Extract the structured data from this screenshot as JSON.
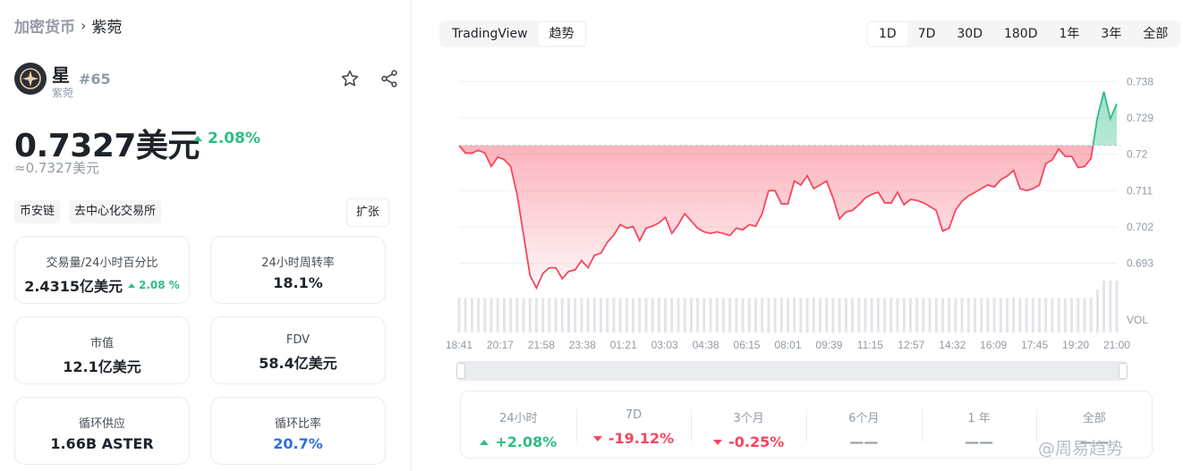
{
  "breadcrumb": {
    "parent": "加密货币",
    "separator": "›",
    "current": "紫菀"
  },
  "coin": {
    "name": "星",
    "subname": "紫菀",
    "rank": "#65"
  },
  "price": {
    "value": "0.7327美元",
    "change": "2.08%",
    "approx": "≈0.7327美元"
  },
  "tags": [
    "币安链",
    "去中心化交易所"
  ],
  "expand_label": "扩张",
  "stats": [
    {
      "label": "交易量/24小时百分比",
      "value": "2.4315亿美元",
      "sub": "2.08 %"
    },
    {
      "label": "24小时周转率",
      "value": "18.1%"
    },
    {
      "label": "市值",
      "value": "12.1亿美元"
    },
    {
      "label": "FDV",
      "value": "58.4亿美元"
    },
    {
      "label": "循环供应",
      "value": "1.66B ASTER"
    },
    {
      "label": "循环比率",
      "value": "20.7%"
    }
  ],
  "chart_type_tabs": [
    {
      "label": "TradingView",
      "active": false
    },
    {
      "label": "趋势",
      "active": true
    }
  ],
  "range_tabs": [
    {
      "label": "1D",
      "active": true
    },
    {
      "label": "7D",
      "active": false
    },
    {
      "label": "30D",
      "active": false
    },
    {
      "label": "180D",
      "active": false
    },
    {
      "label": "1年",
      "active": false
    },
    {
      "label": "3年",
      "active": false
    },
    {
      "label": "全部",
      "active": false
    }
  ],
  "chart_data": {
    "type": "area",
    "title": "",
    "xlabel": "",
    "ylabel": "",
    "volume_label": "VOL",
    "x_ticks": [
      "18:41",
      "20:17",
      "21:58",
      "23:38",
      "01:21",
      "03:03",
      "04:38",
      "06:15",
      "08:01",
      "09:39",
      "11:15",
      "12:57",
      "14:32",
      "16:09",
      "17:45",
      "19:20",
      "21:00"
    ],
    "y_ticks": [
      0.738,
      0.729,
      0.72,
      0.711,
      0.702,
      0.693
    ],
    "ylim": [
      0.6896,
      0.7405
    ],
    "reference_price": 0.7222,
    "series": [
      {
        "values": [
          0.7222,
          0.7203,
          0.7203,
          0.721,
          0.7203,
          0.717,
          0.7193,
          0.7187,
          0.717,
          0.71,
          0.7,
          0.69,
          0.6869,
          0.6905,
          0.6919,
          0.6919,
          0.6892,
          0.691,
          0.6914,
          0.6937,
          0.6919,
          0.695,
          0.6955,
          0.6982,
          0.7,
          0.7026,
          0.7017,
          0.7021,
          0.6986,
          0.7017,
          0.7022,
          0.703,
          0.7044,
          0.7004,
          0.7026,
          0.7053,
          0.7035,
          0.7017,
          0.7008,
          0.7004,
          0.7008,
          0.7004,
          0.6999,
          0.7017,
          0.7013,
          0.7026,
          0.7022,
          0.7053,
          0.711,
          0.711,
          0.7077,
          0.7077,
          0.7134,
          0.7124,
          0.7147,
          0.7115,
          0.7124,
          0.7134,
          0.7092,
          0.704,
          0.7057,
          0.7061,
          0.7075,
          0.7092,
          0.7101,
          0.7106,
          0.708,
          0.7079,
          0.7106,
          0.7075,
          0.7088,
          0.7086,
          0.708,
          0.7071,
          0.7061,
          0.701,
          0.7017,
          0.7062,
          0.7084,
          0.7097,
          0.7106,
          0.7115,
          0.7124,
          0.7119,
          0.7137,
          0.7146,
          0.716,
          0.7115,
          0.711,
          0.7115,
          0.7124,
          0.7177,
          0.7186,
          0.7213,
          0.7195,
          0.7195,
          0.7167,
          0.717,
          0.719,
          0.7292,
          0.7355,
          0.7288,
          0.7325
        ]
      }
    ],
    "volume": [
      4,
      4,
      4,
      4,
      4,
      4,
      4,
      4,
      4,
      4,
      4,
      4,
      4,
      4,
      4,
      4,
      4,
      4,
      4,
      4,
      4,
      4,
      4,
      4,
      4,
      4,
      4,
      4,
      4,
      4,
      4,
      4,
      4,
      4,
      4,
      4,
      4,
      4,
      4,
      4,
      4,
      4,
      4,
      4,
      4,
      4,
      4,
      4,
      4,
      4,
      4,
      4,
      4,
      4,
      4,
      4,
      4,
      4,
      4,
      4,
      4,
      4,
      4,
      4,
      4,
      4,
      4,
      4,
      4,
      4,
      4,
      4,
      4,
      4,
      4,
      4,
      4,
      4,
      4,
      4,
      4,
      4,
      4,
      4,
      4,
      4,
      4,
      4,
      4,
      4,
      4,
      4,
      4,
      4,
      4,
      4,
      4,
      4,
      4,
      5,
      6,
      6,
      6
    ],
    "colors": {
      "down": "#f6465d",
      "up": "#2ebd85",
      "grid": "#f0f0f0"
    }
  },
  "performance": [
    {
      "label": "24小时",
      "value": "+2.08%",
      "dir": "up"
    },
    {
      "label": "7D",
      "value": "-19.12%",
      "dir": "down"
    },
    {
      "label": "3个月",
      "value": "-0.25%",
      "dir": "down"
    },
    {
      "label": "6个月",
      "value": "——",
      "dir": "none"
    },
    {
      "label": "1 年",
      "value": "——",
      "dir": "none"
    },
    {
      "label": "全部",
      "value": "——",
      "dir": "none"
    }
  ],
  "watermark": "@周易趋势"
}
